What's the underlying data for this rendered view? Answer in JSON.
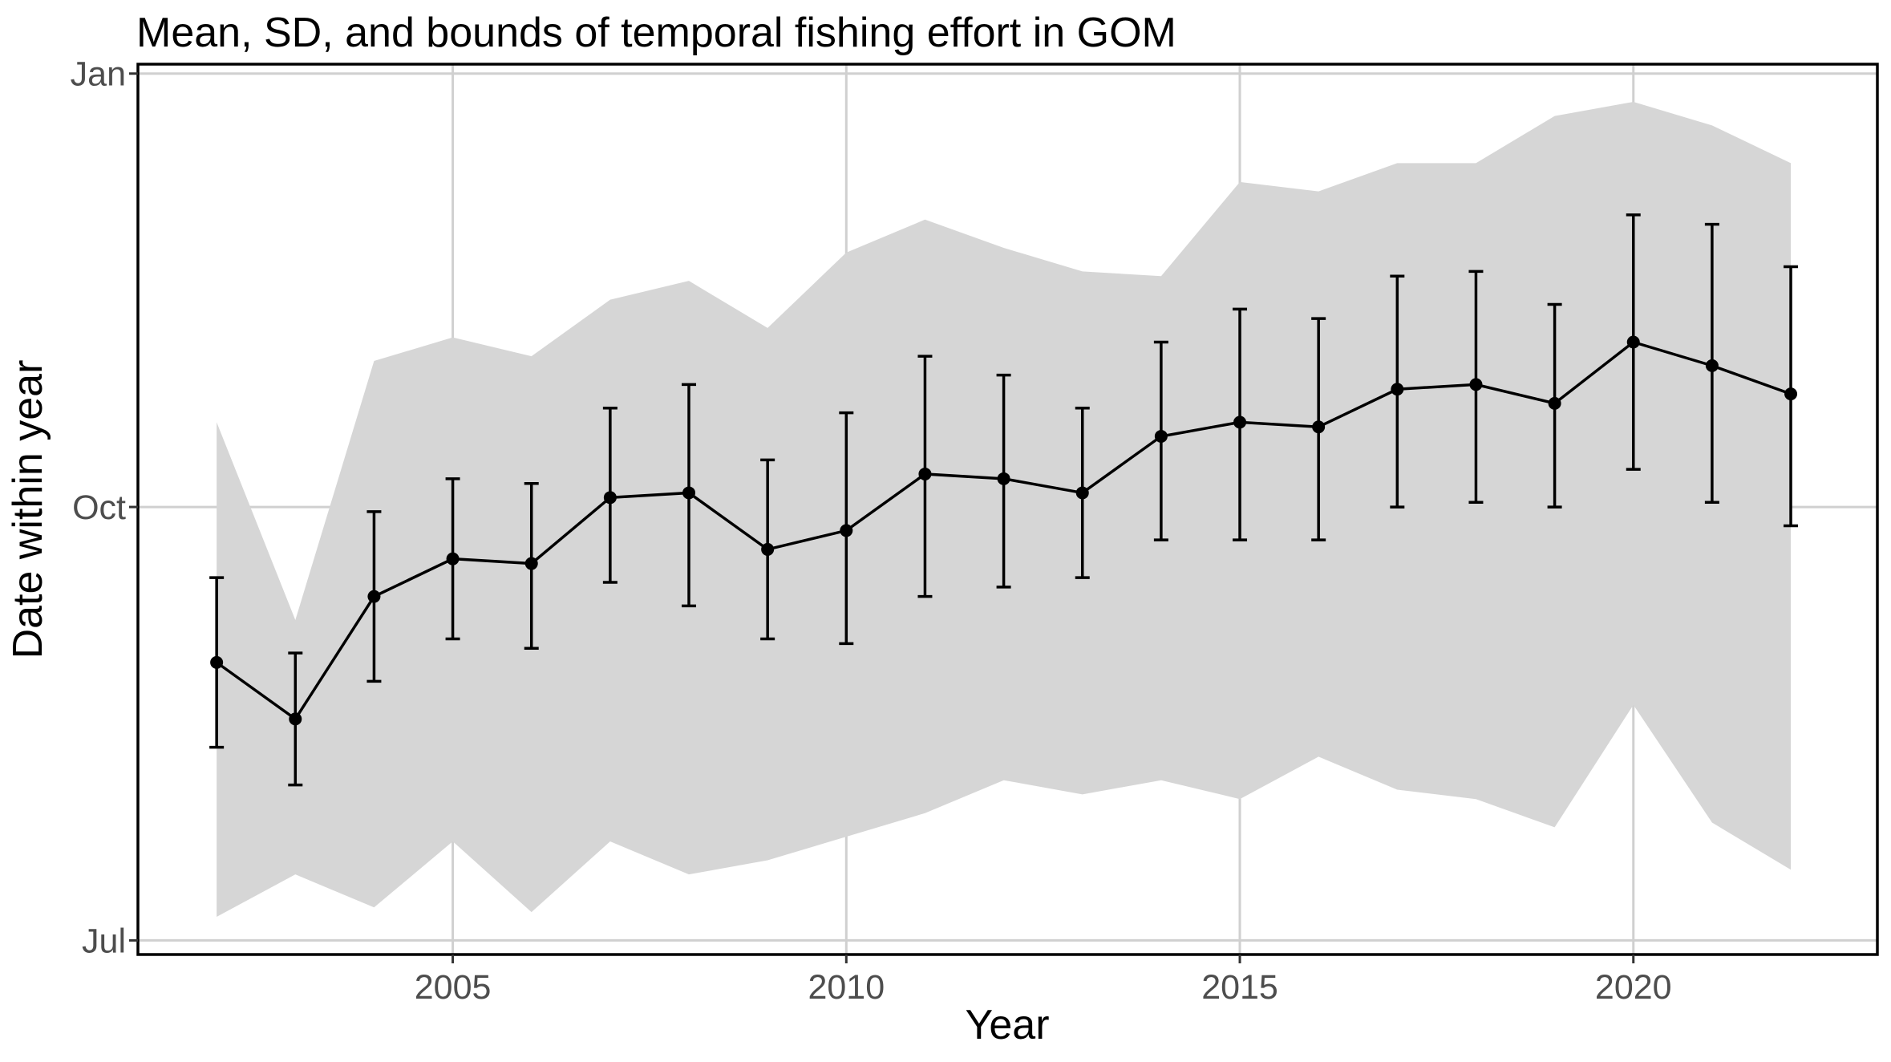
{
  "chart_data": {
    "type": "line",
    "title": "Mean, SD, and bounds of temporal fishing effort in GOM",
    "xlabel": "Year",
    "ylabel": "Date within year",
    "xlim": [
      2001,
      2023.1
    ],
    "ylim": [
      "2022-06-28",
      "2023-01-03"
    ],
    "x_ticks": [
      2005,
      2010,
      2015,
      2020
    ],
    "y_ticks": [
      {
        "date": "2022-07-01",
        "label": "Jul"
      },
      {
        "date": "2022-10-01",
        "label": "Oct"
      },
      {
        "date": "2023-01-01",
        "label": "Jan"
      }
    ],
    "grid": true,
    "legend": "none",
    "ribbon_color": "#d6d6d6",
    "series": [
      {
        "x": [
          2002,
          2003,
          2004,
          2005,
          2006,
          2007,
          2008,
          2009,
          2010,
          2011,
          2012,
          2013,
          2014,
          2015,
          2016,
          2017,
          2018,
          2019,
          2020,
          2021,
          2022
        ],
        "mean": [
          "2022-08-29",
          "2022-08-17",
          "2022-09-12",
          "2022-09-20",
          "2022-09-19",
          "2022-10-03",
          "2022-10-04",
          "2022-09-22",
          "2022-09-26",
          "2022-10-08",
          "2022-10-07",
          "2022-10-04",
          "2022-10-16",
          "2022-10-19",
          "2022-10-18",
          "2022-10-26",
          "2022-10-27",
          "2022-10-23",
          "2022-11-05",
          "2022-10-31",
          "2022-10-25"
        ],
        "sd_lower": [
          "2022-08-11",
          "2022-08-03",
          "2022-08-25",
          "2022-09-03",
          "2022-09-01",
          "2022-09-15",
          "2022-09-10",
          "2022-09-03",
          "2022-09-02",
          "2022-09-12",
          "2022-09-14",
          "2022-09-16",
          "2022-09-24",
          "2022-09-24",
          "2022-09-24",
          "2022-10-01",
          "2022-10-02",
          "2022-10-01",
          "2022-10-09",
          "2022-10-02",
          "2022-09-27"
        ],
        "sd_upper": [
          "2022-09-16",
          "2022-08-31",
          "2022-09-30",
          "2022-10-07",
          "2022-10-06",
          "2022-10-22",
          "2022-10-27",
          "2022-10-11",
          "2022-10-21",
          "2022-11-02",
          "2022-10-29",
          "2022-10-22",
          "2022-11-05",
          "2022-11-12",
          "2022-11-10",
          "2022-11-19",
          "2022-11-20",
          "2022-11-13",
          "2022-12-02",
          "2022-11-30",
          "2022-11-21"
        ],
        "min": [
          "2022-07-06",
          "2022-07-15",
          "2022-07-08",
          "2022-07-22",
          "2022-07-07",
          "2022-07-22",
          "2022-07-15",
          "2022-07-18",
          "2022-07-23",
          "2022-07-28",
          "2022-08-04",
          "2022-08-01",
          "2022-08-04",
          "2022-07-31",
          "2022-08-09",
          "2022-08-02",
          "2022-07-31",
          "2022-07-25",
          "2022-08-20",
          "2022-07-26",
          "2022-07-16"
        ],
        "max": [
          "2022-10-19",
          "2022-09-07",
          "2022-11-01",
          "2022-11-06",
          "2022-11-02",
          "2022-11-14",
          "2022-11-18",
          "2022-11-08",
          "2022-11-24",
          "2022-12-01",
          "2022-11-25",
          "2022-11-20",
          "2022-11-19",
          "2022-12-09",
          "2022-12-07",
          "2022-12-13",
          "2022-12-13",
          "2022-12-23",
          "2022-12-26",
          "2022-12-21",
          "2022-12-13"
        ]
      }
    ]
  }
}
